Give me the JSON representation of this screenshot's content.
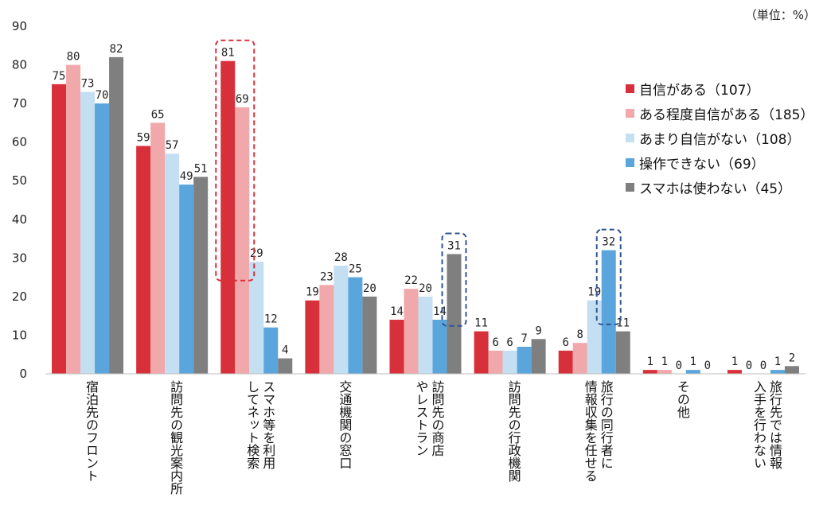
{
  "unit_note": "（単位：%）",
  "legend": [
    {
      "label": "自信がある（107）",
      "color": "#d8303a"
    },
    {
      "label": "ある程度自信がある（185）",
      "color": "#f0a8aa"
    },
    {
      "label": "あまり自信がない（108）",
      "color": "#c4def2"
    },
    {
      "label": "操作できない（69）",
      "color": "#5aa5dc"
    },
    {
      "label": "スマホは使わない（45）",
      "color": "#7f7f7f"
    }
  ],
  "highlights": [
    {
      "category": "スマホ等を利用してネット検索",
      "series": [
        "自信がある（107）",
        "ある程度自信がある（185）"
      ],
      "color": "#d8303a"
    },
    {
      "category": "訪問先の商店やレストラン",
      "series": [
        "スマホは使わない（45）"
      ],
      "color": "#2f5597"
    },
    {
      "category": "旅行の同行者に情報収集を任せる",
      "series": [
        "操作できない（69）"
      ],
      "color": "#2f5597"
    }
  ],
  "chart_data": {
    "type": "bar",
    "categories": [
      "宿泊先のフロント",
      "訪問先の観光案内所",
      "スマホ等を利用してネット検索",
      "交通機関の窓口",
      "訪問先の商店やレストラン",
      "訪問先の行政機関",
      "旅行の同行者に情報収集を任せる",
      "その他",
      "旅行先では情報入手を行わない"
    ],
    "category_lines": [
      [
        "宿泊先のフロント"
      ],
      [
        "訪問先の観光案内所"
      ],
      [
        "スマホ等を利用",
        "してネット検索"
      ],
      [
        "交通機関の窓口"
      ],
      [
        "訪問先の商店",
        "やレストラン"
      ],
      [
        "訪問先の行政機関"
      ],
      [
        "旅行の同行者に",
        "情報収集を任せる"
      ],
      [
        "その他"
      ],
      [
        "旅行先では情報",
        "入手を行わない"
      ]
    ],
    "series": [
      {
        "name": "自信がある（107）",
        "color": "#d8303a",
        "values": [
          75,
          59,
          81,
          19,
          14,
          11,
          6,
          1,
          1
        ]
      },
      {
        "name": "ある程度自信がある（185）",
        "color": "#f0a8aa",
        "values": [
          80,
          65,
          69,
          23,
          22,
          6,
          8,
          1,
          0
        ]
      },
      {
        "name": "あまり自信がない（108）",
        "color": "#c4def2",
        "values": [
          73,
          57,
          29,
          28,
          20,
          6,
          19,
          0,
          0
        ]
      },
      {
        "name": "操作できない（69）",
        "color": "#5aa5dc",
        "values": [
          70,
          49,
          12,
          25,
          14,
          7,
          32,
          1,
          1
        ]
      },
      {
        "name": "スマホは使わない（45）",
        "color": "#7f7f7f",
        "values": [
          82,
          51,
          4,
          20,
          31,
          9,
          11,
          0,
          2
        ]
      }
    ],
    "ylim": [
      0,
      90
    ],
    "yticks": [
      0,
      10,
      20,
      30,
      40,
      50,
      60,
      70,
      80,
      90
    ],
    "grid": false,
    "legend_position": "right"
  }
}
